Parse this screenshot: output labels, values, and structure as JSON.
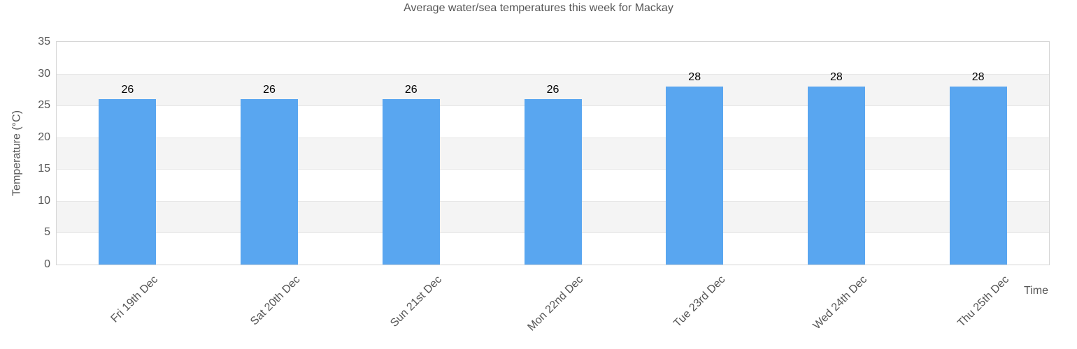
{
  "chart_data": {
    "type": "bar",
    "title": "Average water/sea temperatures this week for Mackay",
    "xlabel": "Time",
    "ylabel": "Temperature (°C)",
    "categories": [
      "Fri 19th Dec",
      "Sat 20th Dec",
      "Sun 21st Dec",
      "Mon 22nd Dec",
      "Tue 23rd Dec",
      "Wed 24th Dec",
      "Thu 25th Dec"
    ],
    "values": [
      26,
      26,
      26,
      26,
      28,
      28,
      28
    ],
    "value_labels": [
      "26",
      "26",
      "26",
      "26",
      "28",
      "28",
      "28"
    ],
    "ylim": [
      0,
      35
    ],
    "yticks": [
      0,
      5,
      10,
      15,
      20,
      25,
      30,
      35
    ],
    "grid": true,
    "legend": "none",
    "colors": {
      "bar": "#59a6f0",
      "band_even": "#ffffff",
      "band_odd": "#f4f4f4",
      "gridline": "#e7e7e7",
      "frame": "#d6d6d6",
      "axis_text": "#555555",
      "value_text": "#000000",
      "background": "#ffffff"
    }
  }
}
